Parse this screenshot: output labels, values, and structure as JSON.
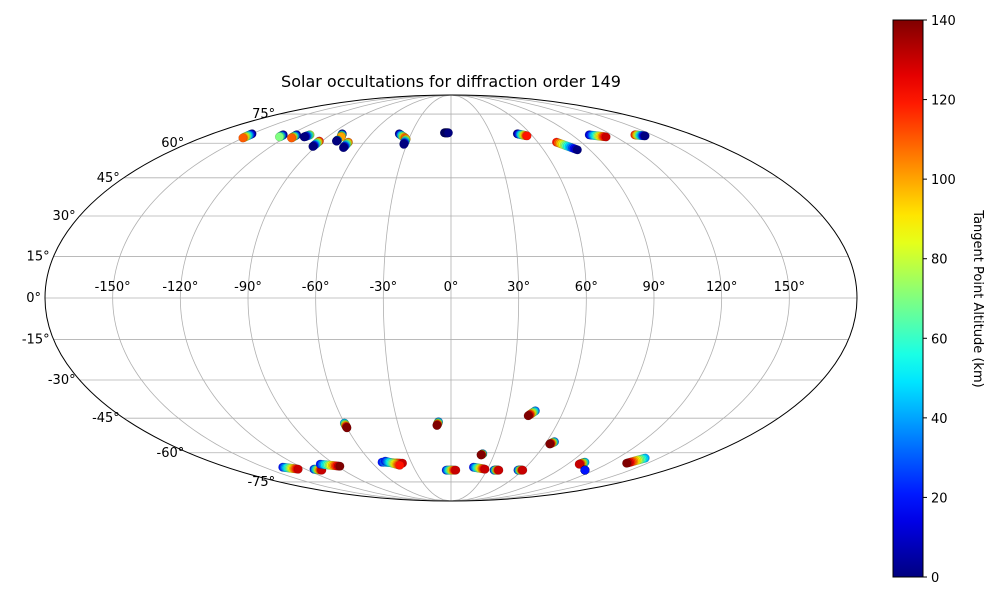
{
  "chart_data": {
    "type": "scatter",
    "projection": "mollweide",
    "title": "Solar occultations for diffraction order 149",
    "lon_tick_labels": [
      "-150°",
      "-120°",
      "-90°",
      "-60°",
      "-30°",
      "0°",
      "30°",
      "60°",
      "90°",
      "120°",
      "150°"
    ],
    "lon_ticks": [
      -150,
      -120,
      -90,
      -60,
      -30,
      0,
      30,
      60,
      90,
      120,
      150
    ],
    "lat_tick_labels": [
      "75°",
      "60°",
      "45°",
      "30°",
      "15°",
      "0°",
      "-15°",
      "-30°",
      "-45°",
      "-60°",
      "-75°"
    ],
    "lat_ticks": [
      75,
      60,
      45,
      30,
      15,
      0,
      -15,
      -30,
      -45,
      -60,
      -75
    ],
    "colorbar": {
      "label": "Tangent Point Altitude (km)",
      "min": 0,
      "max": 140,
      "tick_labels": [
        "0",
        "20",
        "40",
        "60",
        "80",
        "100",
        "120",
        "140"
      ],
      "ticks": [
        0,
        20,
        40,
        60,
        80,
        100,
        120,
        140
      ],
      "colormap": "jet"
    },
    "tracks": [
      {
        "lon_start": -150,
        "lat_start": 64.5,
        "lon_end": -150,
        "lat_end": 62.5,
        "alt_start": 0,
        "alt_end": 110
      },
      {
        "lon_start": -125,
        "lat_start": 64,
        "lon_end": -125,
        "lat_end": 63,
        "alt_start": 0,
        "alt_end": 70
      },
      {
        "lon_start": -115,
        "lat_start": 64,
        "lon_end": -115,
        "lat_end": 62.5,
        "alt_start": 0,
        "alt_end": 110
      },
      {
        "lon_start": -105,
        "lat_start": 64,
        "lon_end": -107,
        "lat_end": 63,
        "alt_start": 80,
        "alt_end": 0
      },
      {
        "lon_start": -92,
        "lat_start": 61,
        "lon_end": -92,
        "lat_end": 58.5,
        "alt_start": 120,
        "alt_end": 0
      },
      {
        "lon_start": -82,
        "lat_start": 64.5,
        "lon_end": -80,
        "lat_end": 63,
        "alt_start": 0,
        "alt_end": 100
      },
      {
        "lon_start": -80,
        "lat_start": 61.5,
        "lon_end": -80,
        "lat_end": 61,
        "alt_start": 70,
        "alt_end": 0
      },
      {
        "lon_start": -71,
        "lat_start": 60.5,
        "lon_end": -71,
        "lat_end": 58,
        "alt_start": 110,
        "alt_end": 0
      },
      {
        "lon_start": -39,
        "lat_start": 64.5,
        "lon_end": -33,
        "lat_end": 62.5,
        "alt_start": 0,
        "alt_end": 110
      },
      {
        "lon_start": -32,
        "lat_start": 62,
        "lon_end": -32,
        "lat_end": 59.5,
        "alt_start": 100,
        "alt_end": 0
      },
      {
        "lon_start": -5,
        "lat_start": 65,
        "lon_end": -2,
        "lat_end": 65,
        "alt_start": 0,
        "alt_end": 0
      },
      {
        "lon_start": 50,
        "lat_start": 64.5,
        "lon_end": 56,
        "lat_end": 63.5,
        "alt_start": 0,
        "alt_end": 120
      },
      {
        "lon_start": 73,
        "lat_start": 60.5,
        "lon_end": 82,
        "lat_end": 57,
        "alt_start": 120,
        "alt_end": 0
      },
      {
        "lon_start": 103,
        "lat_start": 64,
        "lon_end": 113,
        "lat_end": 63,
        "alt_start": 10,
        "alt_end": 130
      },
      {
        "lon_start": 137,
        "lat_start": 64,
        "lon_end": 143,
        "lat_end": 63.5,
        "alt_start": 120,
        "alt_end": 0
      },
      {
        "lon_start": -135,
        "lat_start": -67,
        "lon_end": -126,
        "lat_end": -68,
        "alt_start": 20,
        "alt_end": 130
      },
      {
        "lon_start": -113,
        "lat_start": -68,
        "lon_end": -108,
        "lat_end": -68.5,
        "alt_start": 20,
        "alt_end": 130
      },
      {
        "lon_start": -101,
        "lat_start": -65.5,
        "lon_end": -88,
        "lat_end": -66.5,
        "alt_start": 20,
        "alt_end": 140
      },
      {
        "lon_start": -60,
        "lat_start": -47,
        "lon_end": -60,
        "lat_end": -49,
        "alt_start": 40,
        "alt_end": 140
      },
      {
        "lon_start": -52,
        "lat_start": -64.5,
        "lon_end": -37,
        "lat_end": -65,
        "alt_start": 20,
        "alt_end": 130
      },
      {
        "lon_start": -49,
        "lat_start": -64,
        "lon_end": -40,
        "lat_end": -66,
        "alt_start": 20,
        "alt_end": 120
      },
      {
        "lon_start": -7,
        "lat_start": -46.5,
        "lon_end": -8,
        "lat_end": -48,
        "alt_start": 30,
        "alt_end": 140
      },
      {
        "lon_start": -4,
        "lat_start": -68.5,
        "lon_end": 4,
        "lat_end": -68.5,
        "alt_start": 20,
        "alt_end": 130
      },
      {
        "lon_start": 18,
        "lat_start": -67,
        "lon_end": 28,
        "lat_end": -68,
        "alt_start": 20,
        "alt_end": 130
      },
      {
        "lon_start": 36,
        "lat_start": -68.5,
        "lon_end": 40,
        "lat_end": -68.5,
        "alt_start": 20,
        "alt_end": 130
      },
      {
        "lon_start": 22,
        "lat_start": -60.5,
        "lon_end": 21,
        "lat_end": -61,
        "alt_start": 30,
        "alt_end": 140
      },
      {
        "lon_start": 45,
        "lat_start": -42,
        "lon_end": 42,
        "lat_end": -44,
        "alt_start": 30,
        "alt_end": 140
      },
      {
        "lon_start": 56,
        "lat_start": -68.5,
        "lon_end": 60,
        "lat_end": -68.5,
        "alt_start": 20,
        "alt_end": 130
      },
      {
        "lon_start": 65,
        "lat_start": -55,
        "lon_end": 63,
        "lat_end": -56,
        "alt_start": 30,
        "alt_end": 140
      },
      {
        "lon_start": 101,
        "lat_start": -64.5,
        "lon_end": 99,
        "lat_end": -65.5,
        "alt_start": 40,
        "alt_end": 130
      },
      {
        "lon_start": 112,
        "lat_start": -68.5,
        "lon_end": 112,
        "lat_end": -68.5,
        "alt_start": 20,
        "alt_end": 20
      },
      {
        "lon_start": 140,
        "lat_start": -62.5,
        "lon_end": 134,
        "lat_end": -65,
        "alt_start": 40,
        "alt_end": 140
      }
    ]
  }
}
